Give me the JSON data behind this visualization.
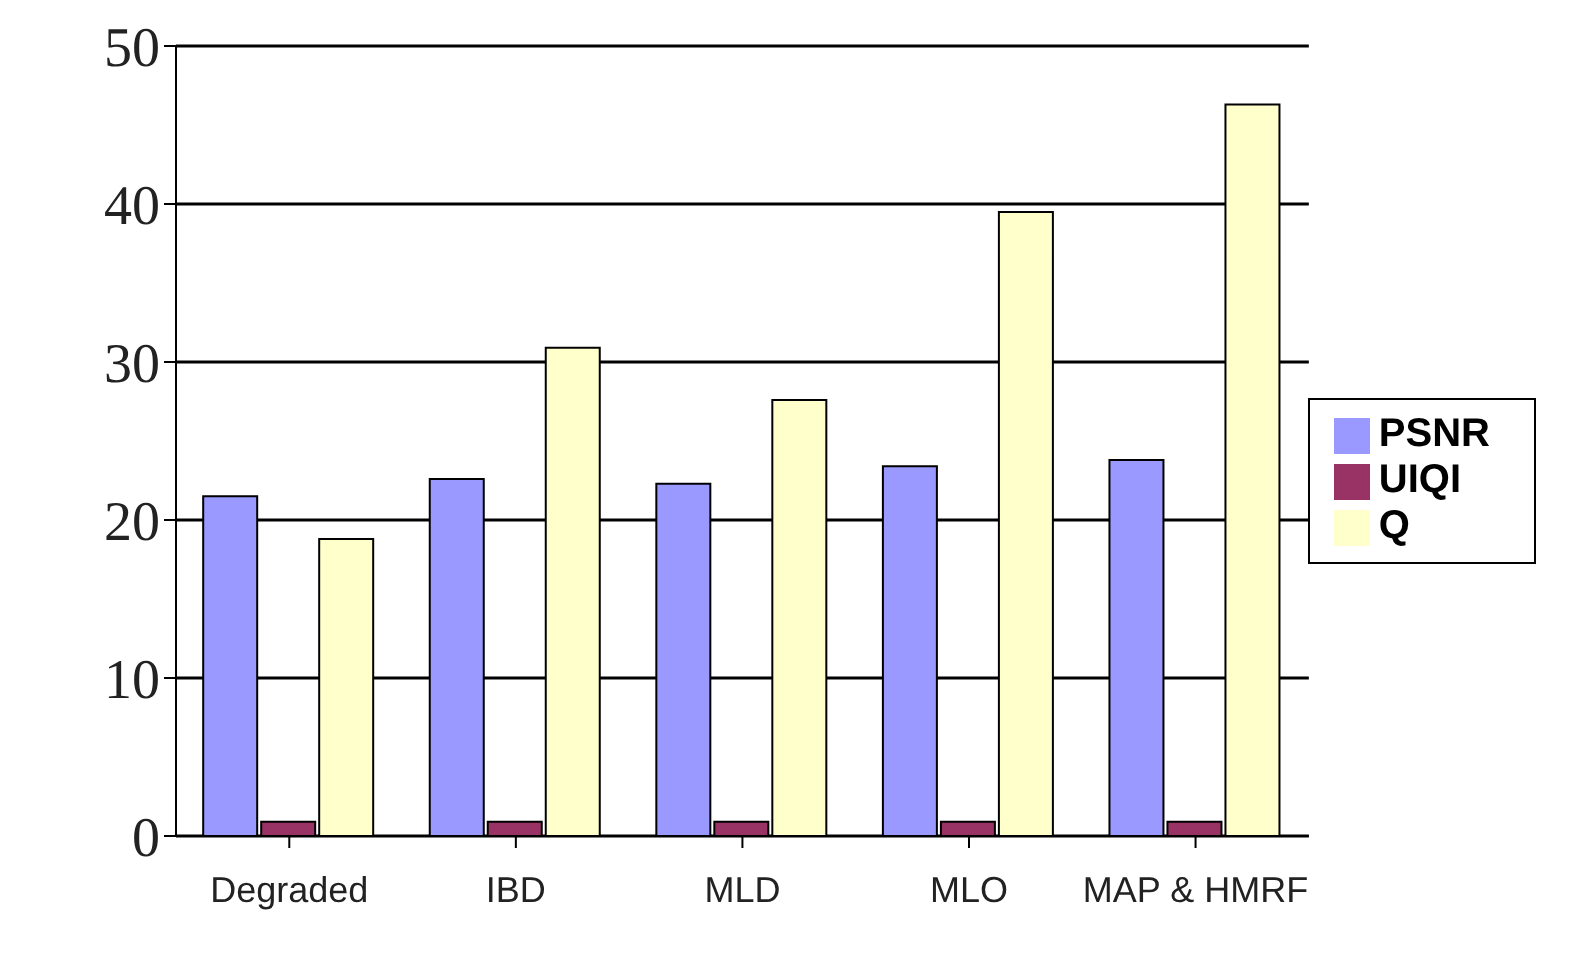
{
  "chart_data": {
    "type": "bar",
    "categories": [
      "Degraded",
      "IBD",
      "MLD",
      "MLO",
      "MAP & HMRF"
    ],
    "series": [
      {
        "name": "PSNR",
        "color": "#9999ff",
        "values": [
          21.5,
          22.6,
          22.3,
          23.4,
          23.8
        ]
      },
      {
        "name": "UIQI",
        "color": "#993366",
        "values": [
          0.9,
          0.9,
          0.9,
          0.9,
          0.9
        ]
      },
      {
        "name": "Q",
        "color": "#ffffcc",
        "values": [
          18.8,
          30.9,
          27.6,
          39.5,
          46.3
        ]
      }
    ],
    "ylim": [
      0,
      50
    ],
    "yticks": [
      0,
      10,
      20,
      30,
      40,
      50
    ],
    "grid": "y",
    "legend": "right"
  }
}
